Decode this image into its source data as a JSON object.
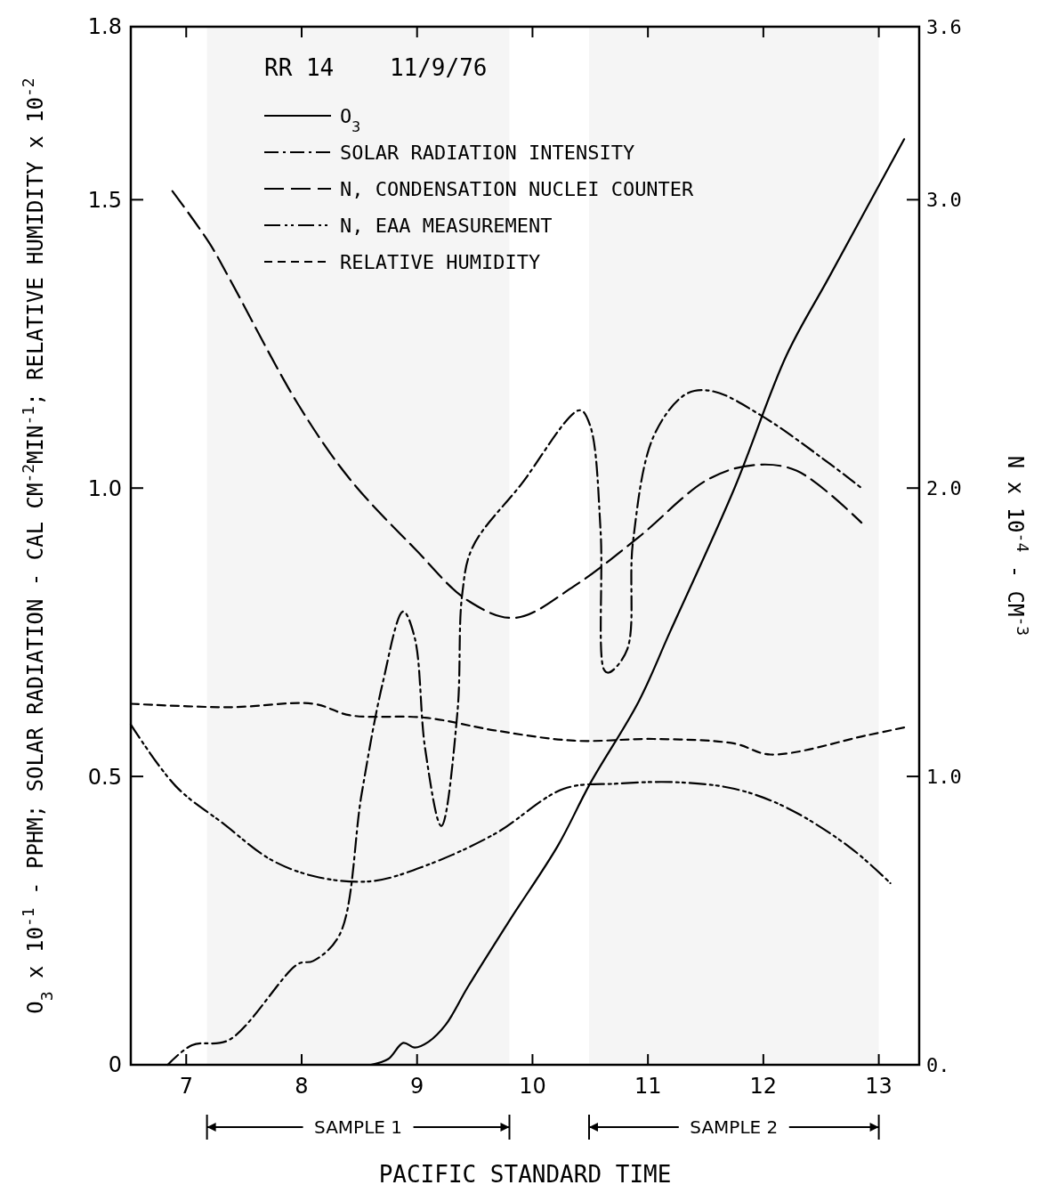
{
  "chart_data": {
    "type": "line",
    "xlabel": "PACIFIC STANDARD TIME",
    "ylabel": "O$_{3}$ x 10$^{-1}$ - PPHM; SOLAR RADIATION - CAL CM$^{-2}$MIN$^{-1}$; RELATIVE HUMIDITY x 10$^{-2}$",
    "y2label": "N x 10$^{-4}$ - CM$^{-3}$",
    "legend_title": "RR 14    11/9/76",
    "legend": "top left",
    "grid": false,
    "xlim": [
      6.52,
      13.35
    ],
    "xticks": [
      7,
      8,
      9,
      10,
      11,
      12,
      13
    ],
    "ylim": [
      0,
      1.8
    ],
    "yticks": [
      0,
      {
        "value": 0.5,
        "label": "0.5"
      },
      {
        "value": 1.0,
        "label": "1.0"
      },
      {
        "value": 1.5,
        "label": "1.5"
      },
      {
        "value": 1.8,
        "label": "1.8"
      }
    ],
    "y2lim": [
      0,
      3.6
    ],
    "y2ticks": [
      {
        "value": 0,
        "label": "0."
      },
      {
        "value": 1.0,
        "label": "1.0"
      },
      {
        "value": 2.0,
        "label": "2.0"
      },
      {
        "value": 3.0,
        "label": "3.0"
      },
      {
        "value": 3.6,
        "label": "3.6"
      }
    ],
    "bands": [
      {
        "axis": "x",
        "from": 7.18,
        "to": 9.8,
        "label": "SAMPLE 1"
      },
      {
        "axis": "x",
        "from": 10.49,
        "to": 13.0,
        "label": "SAMPLE 2"
      }
    ],
    "series": [
      {
        "name": "O$_{3}$",
        "color": "#000000",
        "line_style": "solid",
        "x": [
          8.6,
          8.75,
          8.88,
          8.98,
          9.1,
          9.25,
          9.44,
          9.8,
          10.22,
          10.5,
          10.92,
          11.19,
          11.75,
          12.2,
          12.57,
          13.22
        ],
        "values": [
          0,
          0.01,
          0.038,
          0.03,
          0.04,
          0.07,
          0.135,
          0.25,
          0.38,
          0.488,
          0.63,
          0.75,
          1.0,
          1.23,
          1.366,
          1.605
        ]
      },
      {
        "name": "SOLAR RADIATION INTENSITY",
        "color": "#000000",
        "line_style": "dashdot",
        "x": [
          6.84,
          7.05,
          7.37,
          7.97,
          8.1,
          8.33,
          8.52,
          8.7,
          8.88,
          8.98,
          9.07,
          9.21,
          9.35,
          9.39,
          9.48,
          9.9,
          10.41,
          10.5,
          10.59,
          10.62,
          10.66,
          10.82,
          10.87,
          11.05,
          11.33,
          11.56,
          11.98,
          12.57,
          12.85
        ],
        "values": [
          0,
          0.034,
          0.043,
          0.175,
          0.18,
          0.226,
          0.47,
          0.66,
          0.786,
          0.74,
          0.548,
          0.414,
          0.612,
          0.814,
          0.897,
          1.006,
          1.135,
          1.108,
          0.925,
          0.685,
          0.68,
          0.72,
          0.906,
          1.09,
          1.163,
          1.168,
          1.126,
          1.043,
          1.0
        ]
      },
      {
        "name": "N, CONDENSATION NUCLEI COUNTER",
        "color": "#000000",
        "line_style": "longdash",
        "axis": "y2",
        "x": [
          6.88,
          7.2,
          7.37,
          7.97,
          8.42,
          8.98,
          9.44,
          9.85,
          10.36,
          10.92,
          11.52,
          11.92,
          12.29,
          12.85
        ],
        "values": [
          3.03,
          2.85,
          2.73,
          2.29,
          2.03,
          1.79,
          1.61,
          1.55,
          1.66,
          1.83,
          2.03,
          2.08,
          2.06,
          1.88
        ]
      },
      {
        "name": "N, EAA MEASUREMENT",
        "color": "#000000",
        "line_style": "dashdotdot",
        "axis": "y2",
        "x": [
          6.52,
          6.91,
          7.32,
          7.74,
          8.15,
          8.61,
          9.07,
          9.67,
          10.27,
          10.73,
          11.24,
          11.75,
          12.2,
          12.75,
          13.1
        ],
        "values": [
          1.18,
          0.966,
          0.837,
          0.71,
          0.65,
          0.637,
          0.69,
          0.8,
          0.957,
          0.975,
          0.98,
          0.957,
          0.892,
          0.754,
          0.63
        ]
      },
      {
        "name": "RELATIVE HUMIDITY",
        "color": "#000000",
        "line_style": "dashed",
        "x": [
          6.52,
          7.37,
          8.1,
          8.42,
          9.07,
          9.67,
          10.36,
          11.05,
          11.75,
          12.06,
          12.89,
          13.22
        ],
        "values": [
          0.626,
          0.62,
          0.626,
          0.606,
          0.602,
          0.58,
          0.562,
          0.565,
          0.557,
          0.538,
          0.571,
          0.585
        ]
      }
    ]
  }
}
